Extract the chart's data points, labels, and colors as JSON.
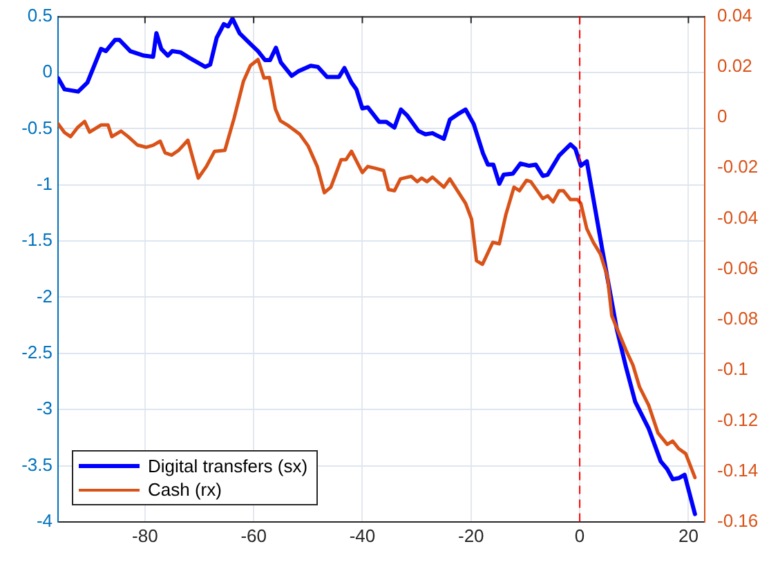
{
  "chart_data": {
    "type": "line",
    "xlim": [
      -96,
      23
    ],
    "xticks": [
      -80,
      -60,
      -40,
      -20,
      0,
      20
    ],
    "ylim": [
      -4,
      0.5
    ],
    "yticks": [
      -4,
      -3.5,
      -3,
      -2.5,
      -2,
      -1.5,
      -1,
      -0.5,
      0,
      0.5
    ],
    "y2lim": [
      -0.16,
      0.04
    ],
    "y2ticks": [
      -0.16,
      -0.14,
      -0.12,
      -0.1,
      -0.08,
      -0.06,
      -0.04,
      -0.02,
      0,
      0.02,
      0.04
    ],
    "grid": true,
    "legend": "bottom left",
    "marker": "none",
    "line_style": "solid",
    "ref_lines": [
      {
        "axis": "x",
        "value": 0,
        "color": "#ff0000",
        "line_style": "dashed"
      }
    ],
    "series": [
      {
        "name": "Digital transfers (sx)",
        "color": "#0000ff",
        "x": [
          -96,
          -94.8,
          -92.3,
          -90.6,
          -88.1,
          -87.2,
          -85.5,
          -84.7,
          -82.7,
          -80.2,
          -78.5,
          -77.9,
          -77,
          -75.8,
          -75,
          -73.5,
          -71.8,
          -68.9,
          -68,
          -66.8,
          -65.5,
          -64.7,
          -63.9,
          -62.6,
          -60.5,
          -59.2,
          -57.9,
          -57,
          -55.9,
          -55,
          -53,
          -51.8,
          -49.5,
          -48.2,
          -46.5,
          -44.3,
          -43.3,
          -42,
          -41.1,
          -40,
          -39,
          -36.9,
          -35.6,
          -34.1,
          -32.9,
          -31.8,
          -29.7,
          -28.4,
          -27.1,
          -26.3,
          -25,
          -23.9,
          -22.4,
          -21,
          -19.5,
          -17.8,
          -16.9,
          -15.9,
          -14.8,
          -14,
          -12.3,
          -10.9,
          -9.3,
          -8.1,
          -6.8,
          -5.9,
          -3.8,
          -1.7,
          -0.8,
          0.2,
          1.3,
          4.2,
          6.8,
          8.5,
          10.2,
          12.7,
          14.9,
          16.1,
          17.1,
          18.2,
          19.3,
          21.2
        ],
        "values": [
          -0.05,
          -0.15,
          -0.17,
          -0.09,
          0.21,
          0.19,
          0.29,
          0.29,
          0.19,
          0.15,
          0.14,
          0.35,
          0.21,
          0.15,
          0.19,
          0.18,
          0.13,
          0.05,
          0.07,
          0.31,
          0.43,
          0.41,
          0.48,
          0.35,
          0.25,
          0.19,
          0.11,
          0.11,
          0.22,
          0.09,
          -0.03,
          0.01,
          0.06,
          0.05,
          -0.04,
          -0.04,
          0.04,
          -0.09,
          -0.15,
          -0.32,
          -0.31,
          -0.44,
          -0.44,
          -0.49,
          -0.33,
          -0.38,
          -0.52,
          -0.55,
          -0.54,
          -0.56,
          -0.59,
          -0.42,
          -0.37,
          -0.33,
          -0.46,
          -0.72,
          -0.82,
          -0.82,
          -0.99,
          -0.91,
          -0.9,
          -0.81,
          -0.83,
          -0.82,
          -0.92,
          -0.91,
          -0.74,
          -0.64,
          -0.68,
          -0.83,
          -0.79,
          -1.59,
          -2.28,
          -2.62,
          -2.93,
          -3.17,
          -3.46,
          -3.53,
          -3.62,
          -3.61,
          -3.58,
          -3.93
        ]
      },
      {
        "name": "Cash (rx)",
        "color": "#d95319",
        "axis": "y2",
        "x": [
          -96,
          -94.8,
          -93.7,
          -92.4,
          -91.1,
          -90.2,
          -88.1,
          -86.8,
          -86.1,
          -84.4,
          -83.1,
          -81.4,
          -79.8,
          -78.5,
          -77.2,
          -76.3,
          -75.1,
          -73.8,
          -72.1,
          -70.2,
          -68.7,
          -67.2,
          -65.3,
          -63.6,
          -61.9,
          -60.6,
          -59.2,
          -58.1,
          -57.1,
          -56,
          -55.1,
          -53.8,
          -51.5,
          -50,
          -48.3,
          -47,
          -45.8,
          -43.9,
          -43,
          -42,
          -40,
          -39,
          -37.8,
          -36.1,
          -35.2,
          -34.1,
          -33,
          -31,
          -29.9,
          -29.1,
          -28.1,
          -27.1,
          -25,
          -23.9,
          -21,
          -19.9,
          -19,
          -17.9,
          -16,
          -14.8,
          -13.6,
          -12.1,
          -11.1,
          -9.8,
          -9,
          -6.8,
          -5.9,
          -4.9,
          -3.8,
          -3,
          -1.7,
          -0.4,
          0.2,
          1.3,
          2.5,
          3.8,
          5.1,
          5.9,
          8.5,
          9.8,
          11,
          12.7,
          14.4,
          16.1,
          17.1,
          18.2,
          19.5,
          21.2
        ],
        "values": [
          -0.0025,
          -0.006,
          -0.0076,
          -0.004,
          -0.0016,
          -0.0058,
          -0.003,
          -0.003,
          -0.0076,
          -0.0054,
          -0.0076,
          -0.0109,
          -0.0118,
          -0.011,
          -0.0094,
          -0.014,
          -0.0149,
          -0.013,
          -0.009,
          -0.024,
          -0.0194,
          -0.0134,
          -0.013,
          -0.0003,
          0.0142,
          0.0205,
          0.0229,
          0.0156,
          0.0158,
          0.0033,
          -0.0013,
          -0.003,
          -0.0067,
          -0.0112,
          -0.0194,
          -0.0298,
          -0.0276,
          -0.0167,
          -0.0167,
          -0.0134,
          -0.0218,
          -0.0194,
          -0.02,
          -0.021,
          -0.0285,
          -0.029,
          -0.0243,
          -0.0233,
          -0.0254,
          -0.024,
          -0.0254,
          -0.0236,
          -0.0276,
          -0.0243,
          -0.034,
          -0.0403,
          -0.0567,
          -0.0581,
          -0.0494,
          -0.05,
          -0.0385,
          -0.0276,
          -0.029,
          -0.0249,
          -0.0254,
          -0.0321,
          -0.031,
          -0.0334,
          -0.029,
          -0.029,
          -0.0325,
          -0.0325,
          -0.034,
          -0.044,
          -0.0494,
          -0.054,
          -0.063,
          -0.0785,
          -0.092,
          -0.098,
          -0.1066,
          -0.1139,
          -0.1248,
          -0.1293,
          -0.128,
          -0.131,
          -0.133,
          -0.1424
        ]
      }
    ]
  }
}
